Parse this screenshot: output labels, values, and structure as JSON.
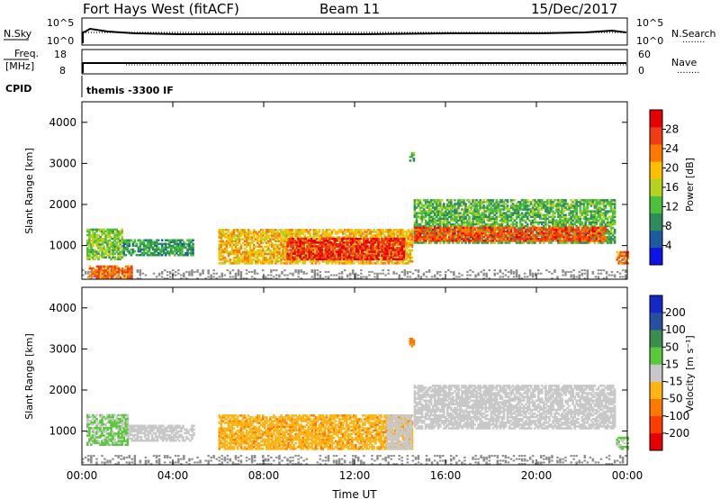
{
  "header": {
    "station": "Fort Hays West (fitACF)",
    "beam": "Beam 11",
    "date": "15/Dec/2017"
  },
  "small_panels": {
    "nsky_label": "N.Sky",
    "nsearch_label": "N.Search",
    "freq_label_1": "Freq.",
    "freq_label_2": "[MHz]",
    "nave_label": "Nave",
    "cpid_label": "CPID",
    "cpid_value": "themis -3300 IF",
    "noise_left_ticks": [
      "10^5",
      "10^0"
    ],
    "noise_right_ticks": [
      "10^5",
      "10^0"
    ],
    "freq_left_ticks": [
      "18",
      "8"
    ],
    "nave_right_ticks": [
      "60",
      "0"
    ]
  },
  "legend_line": "........",
  "xlabel": "Time UT",
  "colors": {
    "power": [
      "#0a14e6",
      "#1e5aa0",
      "#2e8c5a",
      "#4cbf3c",
      "#b4d21e",
      "#ffc000",
      "#ff7800",
      "#f03c14",
      "#e60000"
    ],
    "velocity": [
      "#1428c8",
      "#2850a0",
      "#3c8c50",
      "#5ac83c",
      "#c8c8c8",
      "#ffb414",
      "#ff7800",
      "#ff3c00",
      "#e60000"
    ],
    "ground": "#8c8c8c"
  },
  "chart_data": [
    {
      "type": "heatmap",
      "name": "power",
      "ylabel": "Slant Range [km]",
      "xlim": [
        "00:00",
        "24:00"
      ],
      "ylim": [
        180,
        4500
      ],
      "xticks": [
        "00:00",
        "04:00",
        "08:00",
        "12:00",
        "16:00",
        "20:00",
        "00:00"
      ],
      "yticks": [
        1000,
        2000,
        3000,
        4000
      ],
      "colorbar": {
        "label": "Power [dB]",
        "range": [
          0,
          32
        ],
        "ticks": [
          4,
          8,
          12,
          16,
          20,
          24,
          28
        ]
      },
      "bands": [
        {
          "t0": 0.2,
          "t1": 1.8,
          "r0": 650,
          "r1": 1380,
          "value": 14
        },
        {
          "t0": 1.8,
          "t1": 4.9,
          "r0": 750,
          "r1": 1150,
          "value": 10
        },
        {
          "t0": 0.3,
          "t1": 2.2,
          "r0": 200,
          "r1": 500,
          "value": 24
        },
        {
          "t0": 6.0,
          "t1": 14.5,
          "r0": 550,
          "r1": 1400,
          "value": 20
        },
        {
          "t0": 9.0,
          "t1": 14.2,
          "r0": 650,
          "r1": 1150,
          "value": 28
        },
        {
          "t0": 14.6,
          "t1": 23.4,
          "r0": 1050,
          "r1": 2100,
          "value": 12
        },
        {
          "t0": 14.6,
          "t1": 23.0,
          "r0": 1100,
          "r1": 1450,
          "value": 26
        },
        {
          "t0": 23.5,
          "t1": 24.0,
          "r0": 550,
          "r1": 850,
          "value": 24
        },
        {
          "t0": 14.4,
          "t1": 14.6,
          "r0": 3050,
          "r1": 3250,
          "value": 12
        }
      ],
      "ground_band": {
        "t0": 0.0,
        "t1": 24.0,
        "r0": 180,
        "r1": 420
      }
    },
    {
      "type": "heatmap",
      "name": "velocity",
      "ylabel": "Slant Range [km]",
      "xlim": [
        "00:00",
        "24:00"
      ],
      "ylim": [
        180,
        4500
      ],
      "xticks": [
        "00:00",
        "04:00",
        "08:00",
        "12:00",
        "16:00",
        "20:00",
        "00:00"
      ],
      "yticks": [
        1000,
        2000,
        3000,
        4000
      ],
      "colorbar": {
        "label": "Velocity [m s⁻¹]",
        "ticks": [
          "200",
          "100",
          "50",
          "15",
          "-15",
          "-50",
          "-100",
          "-200"
        ]
      },
      "bands": [
        {
          "t0": 0.2,
          "t1": 2.0,
          "r0": 650,
          "r1": 1380,
          "value": 20
        },
        {
          "t0": 2.0,
          "t1": 4.9,
          "r0": 750,
          "r1": 1150,
          "value": 0
        },
        {
          "t0": 6.0,
          "t1": 14.5,
          "r0": 550,
          "r1": 1400,
          "value": -40
        },
        {
          "t0": 13.4,
          "t1": 14.5,
          "r0": 550,
          "r1": 1400,
          "value": 0
        },
        {
          "t0": 14.6,
          "t1": 23.4,
          "r0": 1050,
          "r1": 2100,
          "value": 0
        },
        {
          "t0": 23.5,
          "t1": 24.0,
          "r0": 550,
          "r1": 850,
          "value": 20
        },
        {
          "t0": 14.4,
          "t1": 14.6,
          "r0": 3050,
          "r1": 3250,
          "value": -60
        }
      ],
      "ground_band": {
        "t0": 0.0,
        "t1": 24.0,
        "r0": 180,
        "r1": 420
      }
    }
  ]
}
